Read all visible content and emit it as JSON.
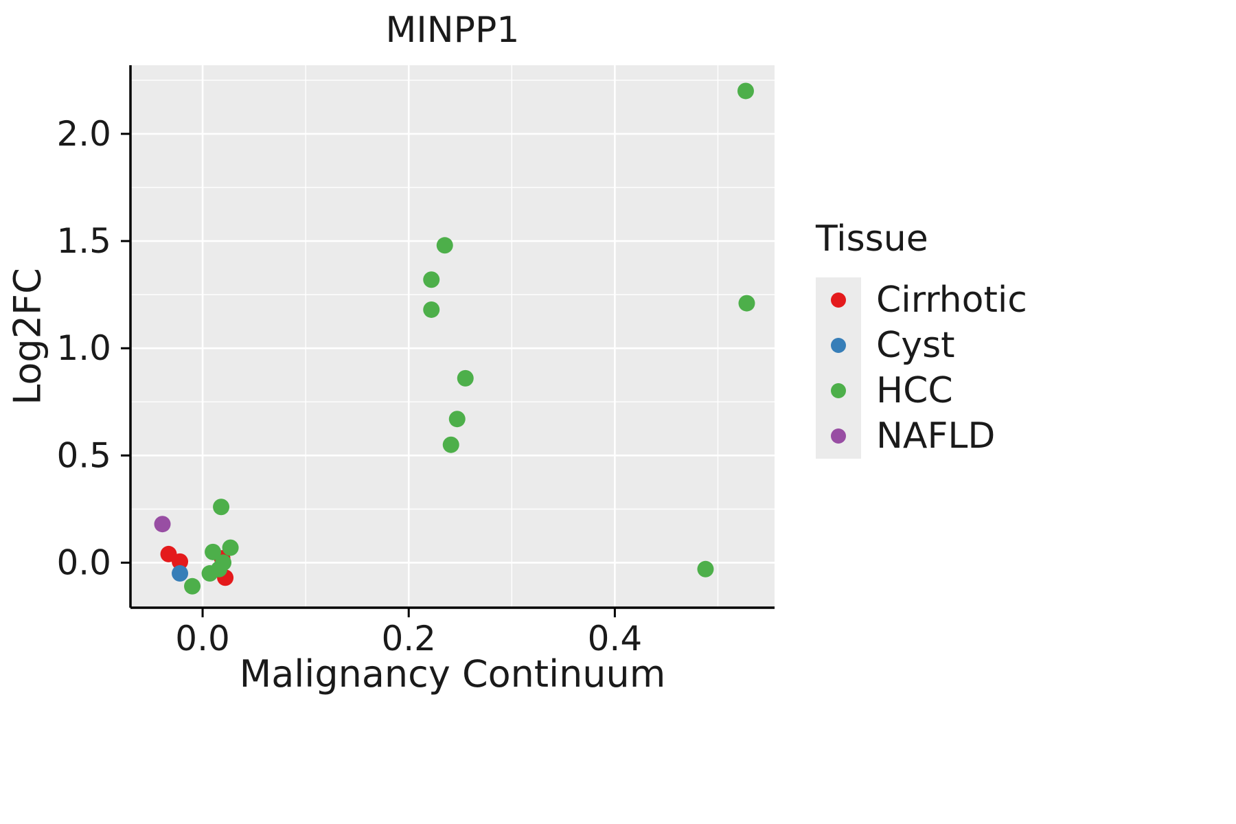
{
  "chart_data": {
    "type": "scatter",
    "title": "MINPP1",
    "xlabel": "Malignancy Continuum",
    "ylabel": "Log2FC",
    "xlim": [
      -0.07,
      0.555
    ],
    "ylim": [
      -0.21,
      2.32
    ],
    "grid": "white major and minor gridlines on gray panel",
    "x_ticks": {
      "major": [
        0.0,
        0.2,
        0.4
      ],
      "labels": [
        "0.0",
        "0.2",
        "0.4"
      ],
      "minor": [
        0.1,
        0.3,
        0.5
      ]
    },
    "y_ticks": {
      "major": [
        0.0,
        0.5,
        1.0,
        1.5,
        2.0
      ],
      "labels": [
        "0.0",
        "0.5",
        "1.0",
        "1.5",
        "2.0"
      ],
      "minor": [
        0.25,
        0.75,
        1.25,
        1.75,
        2.25
      ]
    },
    "colors": {
      "panel": "#EBEBEB",
      "grid": "#FFFFFF",
      "axis": "#000000"
    },
    "legend": {
      "title": "Tissue",
      "position": "right",
      "items": [
        {
          "name": "Cirrhotic",
          "color": "#E41A1C"
        },
        {
          "name": "Cyst",
          "color": "#377EB8"
        },
        {
          "name": "HCC",
          "color": "#4DAF4A"
        },
        {
          "name": "NAFLD",
          "color": "#984EA3"
        }
      ]
    },
    "series": [
      {
        "name": "Cirrhotic",
        "color": "#E41A1C",
        "points": [
          [
            -0.033,
            0.04
          ],
          [
            -0.022,
            0.005
          ],
          [
            0.019,
            0.02
          ],
          [
            0.022,
            -0.07
          ]
        ]
      },
      {
        "name": "Cyst",
        "color": "#377EB8",
        "points": [
          [
            -0.022,
            -0.05
          ]
        ]
      },
      {
        "name": "HCC",
        "color": "#4DAF4A",
        "points": [
          [
            -0.01,
            -0.11
          ],
          [
            0.007,
            -0.05
          ],
          [
            0.01,
            0.05
          ],
          [
            0.016,
            -0.03
          ],
          [
            0.018,
            0.26
          ],
          [
            0.02,
            0.0
          ],
          [
            0.027,
            0.07
          ],
          [
            0.222,
            1.32
          ],
          [
            0.222,
            1.18
          ],
          [
            0.235,
            1.48
          ],
          [
            0.241,
            0.55
          ],
          [
            0.247,
            0.67
          ],
          [
            0.255,
            0.86
          ],
          [
            0.488,
            -0.03
          ],
          [
            0.527,
            2.2
          ],
          [
            0.528,
            1.21
          ]
        ]
      },
      {
        "name": "NAFLD",
        "color": "#984EA3",
        "points": [
          [
            -0.039,
            0.18
          ]
        ]
      }
    ]
  }
}
